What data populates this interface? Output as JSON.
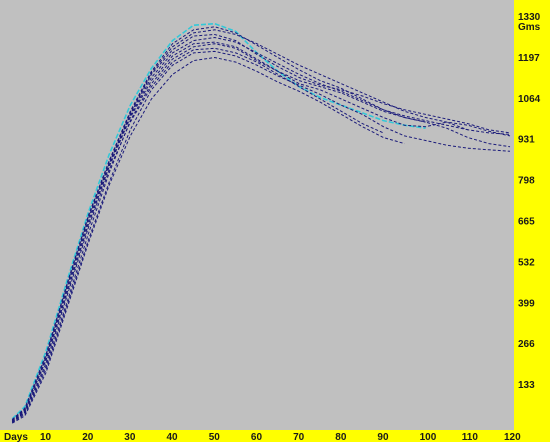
{
  "colors": {
    "plot_background": "#c0c0c0",
    "axis_band": "#ffff00",
    "tick_text": "#1a1a1a",
    "series_dark": "#1a1a7a",
    "series_highlight": "#33c8d8"
  },
  "chart_data": {
    "type": "line",
    "xlabel": "",
    "ylabel": "",
    "x_unit_label": "Days",
    "y_unit_label": "Gms",
    "x_tick_labels": [
      "10",
      "20",
      "30",
      "40",
      "50",
      "60",
      "70",
      "80",
      "90",
      "100",
      "110",
      "120"
    ],
    "y_tick_labels": [
      "133",
      "266",
      "399",
      "532",
      "665",
      "798",
      "931",
      "1064",
      "1197",
      "1330"
    ],
    "xlim": [
      1,
      120
    ],
    "ylim": [
      0,
      1330
    ],
    "grid": false,
    "legend": "none",
    "series": [
      {
        "style": "highlight",
        "x": [
          2,
          5,
          10,
          15,
          20,
          25,
          30,
          35,
          40,
          45,
          50,
          55,
          60,
          65,
          70,
          75,
          80,
          85,
          90,
          95,
          100
        ],
        "y": [
          20,
          60,
          240,
          470,
          690,
          880,
          1040,
          1160,
          1250,
          1300,
          1305,
          1280,
          1210,
          1150,
          1100,
          1065,
          1040,
          1015,
          990,
          975,
          965
        ]
      },
      {
        "style": "dark",
        "x": [
          2,
          5,
          10,
          15,
          20,
          25,
          30,
          35,
          40,
          45,
          50,
          55,
          60,
          65,
          70,
          75,
          80,
          85,
          90,
          95,
          100,
          105,
          110,
          115,
          120
        ],
        "y": [
          15,
          50,
          210,
          430,
          650,
          840,
          1000,
          1120,
          1200,
          1240,
          1245,
          1230,
          1190,
          1150,
          1110,
          1090,
          1060,
          1030,
          1000,
          975,
          970,
          985,
          960,
          950,
          945
        ]
      },
      {
        "style": "dark",
        "x": [
          2,
          5,
          10,
          15,
          20,
          25,
          30,
          35,
          40,
          45,
          50,
          55,
          60,
          65,
          70,
          75,
          80,
          85,
          90,
          95,
          100,
          105,
          110,
          115,
          120
        ],
        "y": [
          10,
          40,
          190,
          400,
          620,
          820,
          990,
          1110,
          1190,
          1230,
          1240,
          1225,
          1185,
          1150,
          1120,
          1100,
          1080,
          1050,
          1020,
          1000,
          985,
          965,
          935,
          915,
          905
        ]
      },
      {
        "style": "dark",
        "x": [
          2,
          5,
          10,
          15,
          20,
          25,
          30,
          35,
          40,
          45,
          50,
          55,
          60,
          65,
          70,
          75,
          80,
          85,
          90,
          95,
          100,
          105,
          110,
          115,
          120
        ],
        "y": [
          12,
          45,
          220,
          450,
          670,
          850,
          1010,
          1140,
          1220,
          1265,
          1270,
          1250,
          1205,
          1165,
          1130,
          1105,
          1090,
          1070,
          1045,
          1025,
          1010,
          995,
          980,
          960,
          950
        ]
      },
      {
        "style": "dark",
        "x": [
          2,
          5,
          10,
          15,
          20,
          25,
          30,
          35,
          40,
          45,
          50,
          55,
          60,
          65,
          70,
          75,
          80,
          85,
          90,
          95,
          100,
          105,
          110,
          115,
          120
        ],
        "y": [
          8,
          35,
          180,
          390,
          600,
          790,
          960,
          1090,
          1170,
          1210,
          1215,
          1200,
          1170,
          1135,
          1105,
          1075,
          1040,
          1010,
          970,
          940,
          925,
          910,
          900,
          895,
          890
        ]
      },
      {
        "style": "dark",
        "x": [
          2,
          5,
          10,
          15,
          20,
          25,
          30,
          35,
          40,
          45,
          50,
          55,
          60,
          65,
          70,
          75,
          80,
          85,
          90,
          95,
          100
        ],
        "y": [
          18,
          55,
          230,
          460,
          680,
          860,
          1020,
          1150,
          1240,
          1285,
          1295,
          1275,
          1235,
          1195,
          1155,
          1120,
          1095,
          1060,
          1025,
          1000,
          985
        ]
      },
      {
        "style": "dark",
        "x": [
          2,
          5,
          10,
          15,
          20,
          25,
          30,
          35,
          40,
          45,
          50,
          55,
          60,
          65,
          70,
          75,
          80,
          85,
          90,
          95
        ],
        "y": [
          6,
          30,
          170,
          380,
          590,
          780,
          940,
          1060,
          1140,
          1185,
          1195,
          1180,
          1150,
          1115,
          1085,
          1050,
          1010,
          970,
          935,
          915
        ]
      },
      {
        "style": "dark",
        "x": [
          2,
          5,
          10,
          15,
          20,
          25,
          30,
          35,
          40,
          45,
          50,
          55,
          60,
          65,
          70,
          75,
          80,
          85,
          90,
          95,
          100,
          105,
          110
        ],
        "y": [
          14,
          48,
          215,
          440,
          660,
          845,
          1005,
          1130,
          1210,
          1250,
          1260,
          1245,
          1210,
          1175,
          1140,
          1110,
          1085,
          1055,
          1025,
          1005,
          990,
          975,
          960
        ]
      },
      {
        "style": "dark",
        "x": [
          2,
          5,
          10,
          15,
          20,
          25,
          30,
          35,
          40,
          45,
          50,
          55,
          60,
          65,
          70,
          75,
          80,
          85,
          90
        ],
        "y": [
          10,
          42,
          200,
          420,
          640,
          830,
          985,
          1100,
          1180,
          1220,
          1225,
          1210,
          1180,
          1140,
          1100,
          1060,
          1020,
          980,
          950
        ]
      },
      {
        "style": "dark",
        "x": [
          2,
          5,
          10,
          15,
          20,
          25,
          30,
          35,
          40,
          45,
          50,
          55,
          60,
          65,
          70,
          75,
          80,
          85,
          90,
          95,
          100,
          105,
          110,
          115,
          120
        ],
        "y": [
          16,
          52,
          225,
          455,
          675,
          855,
          1015,
          1145,
          1230,
          1275,
          1285,
          1270,
          1240,
          1205,
          1170,
          1140,
          1110,
          1080,
          1050,
          1020,
          1000,
          985,
          975,
          955,
          940
        ]
      }
    ]
  }
}
